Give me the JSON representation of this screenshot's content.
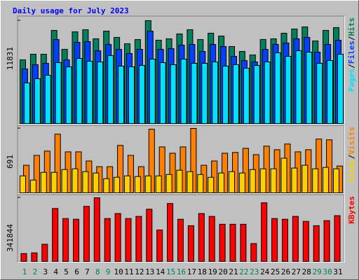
{
  "chart_data": [
    {
      "type": "bar",
      "title": "Daily usage for July 2023",
      "legend_separator": "/",
      "ylim": [
        0,
        12150
      ],
      "yticks": [
        11831
      ],
      "series": [
        {
          "name": "Pages",
          "color": "#00E0FF",
          "values": [
            4669,
            5152,
            5555,
            7004,
            6521,
            7487,
            7165,
            7084,
            7809,
            6601,
            6521,
            6682,
            7406,
            7004,
            6762,
            7406,
            6923,
            6923,
            7084,
            6601,
            6762,
            6360,
            6682,
            7084,
            8131,
            7728,
            8372,
            8211,
            6923,
            7245,
            7970
          ]
        },
        {
          "name": "Files",
          "color": "#0040FF",
          "values": [
            6279,
            6762,
            6923,
            9660,
            7326,
            9338,
            9419,
            8372,
            9097,
            8533,
            8050,
            8533,
            10626,
            8533,
            8614,
            9016,
            9097,
            8292,
            9097,
            8855,
            7728,
            7245,
            7084,
            8533,
            9097,
            9258,
            9741,
            9902,
            8211,
            9097,
            9580
          ]
        },
        {
          "name": "Hits",
          "color": "#00805C",
          "values": [
            7326,
            7970,
            7970,
            10707,
            8533,
            10546,
            10787,
            9741,
            10626,
            9902,
            9177,
            9660,
            11831,
            9580,
            9741,
            10304,
            10787,
            9660,
            10385,
            10063,
            8855,
            8292,
            7889,
            9660,
            9741,
            10385,
            10868,
            11109,
            9499,
            10707,
            11029
          ]
        }
      ]
    },
    {
      "type": "bar",
      "legend_separator": "/",
      "ylim": [
        0,
        706
      ],
      "yticks": [
        691
      ],
      "series": [
        {
          "name": "Sites",
          "color": "#FFD000",
          "values": [
            182,
            137,
            220,
            220,
            250,
            258,
            228,
            213,
            152,
            167,
            182,
            175,
            182,
            182,
            197,
            243,
            228,
            197,
            167,
            213,
            228,
            213,
            250,
            258,
            258,
            372,
            266,
            296,
            258,
            273,
            258
          ]
        },
        {
          "name": "Visits",
          "color": "#FF8000",
          "values": [
            296,
            402,
            448,
            630,
            440,
            440,
            342,
            281,
            281,
            509,
            402,
            281,
            683,
            493,
            425,
            493,
            691,
            296,
            342,
            425,
            433,
            478,
            410,
            501,
            463,
            524,
            440,
            463,
            577,
            569,
            288
          ]
        }
      ]
    },
    {
      "type": "bar",
      "ylim": [
        0,
        349500
      ],
      "yticks": [
        341844
      ],
      "categories": [
        "1",
        "2",
        "3",
        "4",
        "5",
        "6",
        "7",
        "8",
        "9",
        "10",
        "11",
        "12",
        "13",
        "14",
        "15",
        "16",
        "17",
        "18",
        "19",
        "20",
        "21",
        "22",
        "23",
        "24",
        "25",
        "26",
        "27",
        "28",
        "29",
        "30",
        "31"
      ],
      "x_label_colors": [
        "#00805C",
        "#00805C",
        "#000000",
        "#000000",
        "#000000",
        "#000000",
        "#000000",
        "#00805C",
        "#00805C",
        "#000000",
        "#000000",
        "#000000",
        "#000000",
        "#000000",
        "#00805C",
        "#00805C",
        "#000000",
        "#000000",
        "#000000",
        "#000000",
        "#000000",
        "#00805C",
        "#00805C",
        "#000000",
        "#000000",
        "#000000",
        "#000000",
        "#000000",
        "#00805C",
        "#00805C",
        "#000000"
      ],
      "series": [
        {
          "name": "KBytes",
          "color": "#FF0000",
          "values": [
            42251,
            46092,
            92184,
            284234,
            230460,
            226619,
            295757,
            341844,
            230460,
            257347,
            230460,
            241983,
            280393,
            169004,
            311121,
            226619,
            192050,
            257347,
            241983,
            199732,
            199732,
            199732,
            96025,
            314962,
            230460,
            226619,
            241983,
            215096,
            192050,
            218937,
            245824
          ]
        }
      ]
    }
  ]
}
